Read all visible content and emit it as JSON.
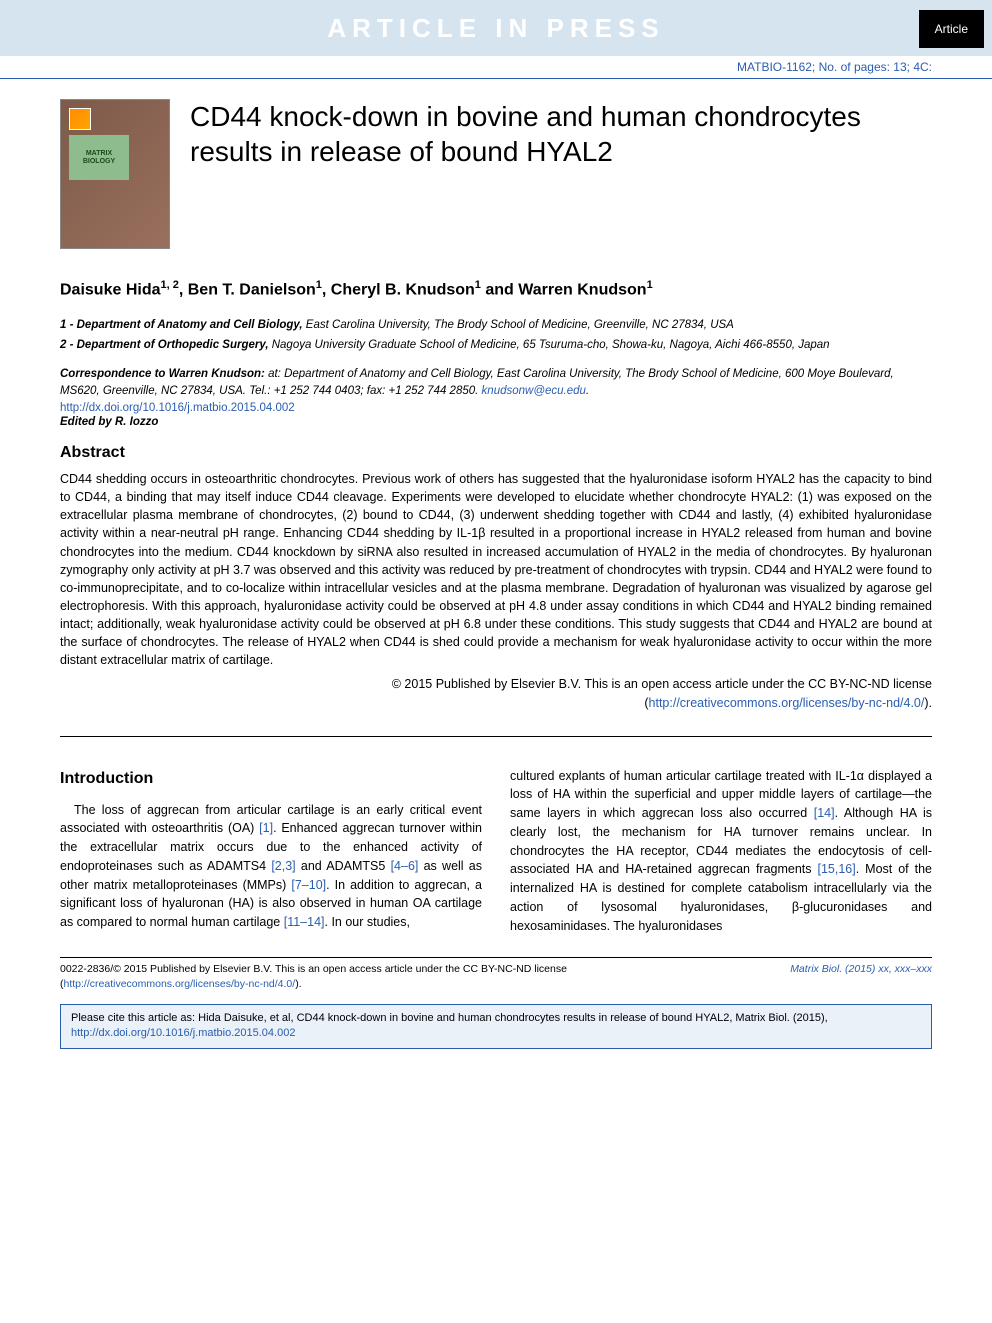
{
  "banner": {
    "text": "ARTICLE IN PRESS",
    "tag": "Article",
    "bg_color": "#d6e4f0",
    "text_color": "#ffffff",
    "tag_bg": "#000000",
    "tag_fg": "#ffffff"
  },
  "matbio": "MATBIO-1162; No. of pages: 13; 4C:",
  "cover_label": "MATRIX\nBIOLOGY",
  "title": "CD44 knock-down in bovine and human chondrocytes results in release of bound HYAL2",
  "authors_html": "Daisuke Hida",
  "authors": [
    {
      "name": "Daisuke Hida",
      "sup": "1, 2"
    },
    {
      "name": "Ben T. Danielson",
      "sup": "1"
    },
    {
      "name": "Cheryl B. Knudson",
      "sup": "1"
    },
    {
      "name": "Warren Knudson",
      "sup": "1"
    }
  ],
  "affiliations": [
    {
      "num": "1",
      "dept": "Department of Anatomy and Cell Biology,",
      "rest": " East Carolina University, The Brody School of Medicine, Greenville, NC 27834, USA"
    },
    {
      "num": "2",
      "dept": "Department of Orthopedic Surgery,",
      "rest": " Nagoya University Graduate School of Medicine, 65 Tsuruma-cho, Showa-ku, Nagoya, Aichi 466-8550, Japan"
    }
  ],
  "correspondence": {
    "lead": "Correspondence to Warren Knudson:",
    "body": "at: Department of Anatomy and Cell Biology, East Carolina University, The Brody School of Medicine, 600 Moye Boulevard, MS620, Greenville, NC 27834, USA. Tel.: +1 252 744 0403; fax: +1 252 744 2850.",
    "email": "knudsonw@ecu.edu"
  },
  "doi": "http://dx.doi.org/10.1016/j.matbio.2015.04.002",
  "edited_by": "Edited by R. Iozzo",
  "abstract_heading": "Abstract",
  "abstract": "CD44 shedding occurs in osteoarthritic chondrocytes. Previous work of others has suggested that the hyaluronidase isoform HYAL2 has the capacity to bind to CD44, a binding that may itself induce CD44 cleavage. Experiments were developed to elucidate whether chondrocyte HYAL2: (1) was exposed on the extracellular plasma membrane of chondrocytes, (2) bound to CD44, (3) underwent shedding together with CD44 and lastly, (4) exhibited hyaluronidase activity within a near-neutral pH range. Enhancing CD44 shedding by IL-1β resulted in a proportional increase in HYAL2 released from human and bovine chondrocytes into the medium. CD44 knockdown by siRNA also resulted in increased accumulation of HYAL2 in the media of chondrocytes. By hyaluronan zymography only activity at pH 3.7 was observed and this activity was reduced by pre-treatment of chondrocytes with trypsin. CD44 and HYAL2 were found to co-immunoprecipitate, and to co-localize within intracellular vesicles and at the plasma membrane. Degradation of hyaluronan was visualized by agarose gel electrophoresis. With this approach, hyaluronidase activity could be observed at pH 4.8 under assay conditions in which CD44 and HYAL2 binding remained intact; additionally, weak hyaluronidase activity could be observed at pH 6.8 under these conditions. This study suggests that CD44 and HYAL2 are bound at the surface of chondrocytes. The release of HYAL2 when CD44 is shed could provide a mechanism for weak hyaluronidase activity to occur within the more distant extracellular matrix of cartilage.",
  "copyright_line": "© 2015 Published by Elsevier B.V. This is an open access article under the CC BY-NC-ND license",
  "cc_link": "http://creativecommons.org/licenses/by-nc-nd/4.0/",
  "intro_heading": "Introduction",
  "intro_col1_pre": "The loss of aggrecan from articular cartilage is an early critical event associated with osteoarthritis (OA) ",
  "ref1": "[1]",
  "intro_col1_mid1": ". Enhanced aggrecan turnover within the extracellular matrix occurs due to the enhanced activity of endoproteinases such as ADAMTS4 ",
  "ref23": "[2,3]",
  "intro_col1_mid2": " and ADAMTS5 ",
  "ref46": "[4–6]",
  "intro_col1_mid3": " as well as other matrix metalloproteinases (MMPs) ",
  "ref710": "[7–10]",
  "intro_col1_mid4": ". In addition to aggrecan, a significant loss of hyaluronan (HA) is also observed in human OA cartilage as compared to normal human cartilage ",
  "ref1114": "[11–14]",
  "intro_col1_end": ". In our studies,",
  "intro_col2_pre": "cultured explants of human articular cartilage treated with IL-1α displayed a loss of HA within the superficial and upper middle layers of cartilage—the same layers in which aggrecan loss also occurred ",
  "ref14": "[14]",
  "intro_col2_mid1": ". Although HA is clearly lost, the mechanism for HA turnover remains unclear. In chondrocytes the HA receptor, CD44 mediates the endocytosis of cell-associated HA and HA-retained aggrecan fragments ",
  "ref1516": "[15,16]",
  "intro_col2_end": ". Most of the internalized HA is destined for complete catabolism intracellularly via the action of lysosomal hyaluronidases, β-glucuronidases and hexosaminidases. The hyaluronidases",
  "footer": {
    "issn": "0022-2836/© 2015 Published by Elsevier B.V. This is an open access article under the CC BY-NC-ND license",
    "cc_link": "http://creativecommons.org/licenses/by-nc-nd/4.0/",
    "journal": "Matrix Biol.",
    "pages": "(2015) xx, xxx–xxx"
  },
  "cite_box": {
    "pre": "Please cite this article as: Hida Daisuke, et al, CD44 knock-down in bovine and human chondrocytes results in release of bound HYAL2, Matrix Biol. (2015), ",
    "link": "http://dx.doi.org/10.1016/j.matbio.2015.04.002"
  },
  "colors": {
    "link": "#2a5db0",
    "banner_bg": "#d6e4f0",
    "cite_bg": "#eaf1f9"
  },
  "typography": {
    "title_fontsize": 28,
    "authors_fontsize": 16,
    "body_fontsize": 12.5,
    "affil_fontsize": 11.5,
    "footer_fontsize": 10.5,
    "font_family": "Arial, Helvetica, sans-serif"
  }
}
